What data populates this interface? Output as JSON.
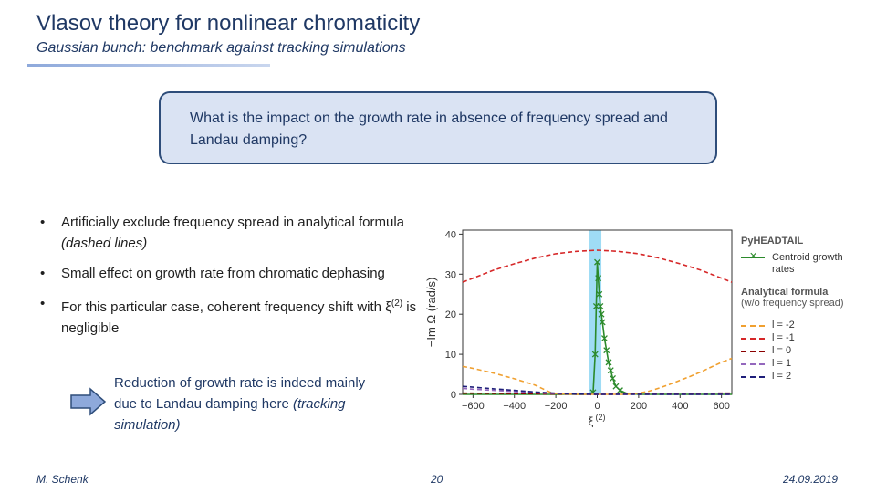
{
  "slide": {
    "title": "Vlasov theory for nonlinear chromaticity",
    "subtitle_bold": "Gaussian bunch:",
    "subtitle_rest": " benchmark against tracking simulations",
    "question": "What is the impact on the growth rate in absence of frequency spread and Landau damping?",
    "bullets": [
      {
        "text": "Artificially exclude frequency spread in analytical formula ",
        "italic": "(dashed lines)"
      },
      {
        "text": "Small effect on growth rate from chromatic dephasing",
        "italic": ""
      },
      {
        "text": "For this particular case, coherent frequency shift with ξ",
        "sup": "(2)",
        "after": " is negligible"
      }
    ],
    "conclusion_main": "Reduction of growth rate is indeed mainly due to Landau damping here",
    "conclusion_italic": "(tracking simulation)",
    "footer_author": "M. Schenk",
    "footer_page": "20",
    "footer_date": "24.09.2019",
    "accent_color": "#1f3864",
    "box_fill": "#dae3f3"
  },
  "chart_data": {
    "type": "line",
    "xlabel": "ξ",
    "xlabel_sup": "(2)",
    "ylabel": "−Im Ω (rad/s)",
    "xlim": [
      -650,
      650
    ],
    "ylim": [
      0,
      41
    ],
    "xticks": [
      -600,
      -400,
      -200,
      0,
      200,
      400,
      600
    ],
    "xtick_labels": [
      "−600",
      "−400",
      "−200",
      "0",
      "200",
      "400",
      "600"
    ],
    "yticks": [
      0,
      10,
      20,
      30,
      40
    ],
    "grid": false,
    "highlight_band": {
      "x_from": -40,
      "x_to": 20,
      "color": "#9fdcf5"
    },
    "legend": {
      "title_tracking": "PyHEADTAIL",
      "tracking_label": "Centroid growth rates",
      "title_analytical": "Analytical formula",
      "analytical_note": "(w/o frequency spread)",
      "placement": "right"
    },
    "series": [
      {
        "name": "Centroid growth rates",
        "color": "#2b8a2b",
        "style": "solid-x",
        "x": [
          -650,
          -550,
          -450,
          -350,
          -250,
          -150,
          -50,
          -20,
          -10,
          -5,
          0,
          5,
          10,
          15,
          20,
          25,
          35,
          45,
          55,
          65,
          75,
          90,
          110,
          140,
          200,
          300,
          400,
          500,
          650
        ],
        "y": [
          0,
          0,
          0,
          0,
          0,
          0,
          0,
          0.5,
          10,
          22,
          33,
          29,
          25,
          22,
          20,
          18,
          14,
          11,
          8,
          6,
          4,
          2,
          1,
          0.3,
          0,
          0,
          0,
          0,
          0
        ]
      },
      {
        "name": "l = -2",
        "color": "#f0a030",
        "style": "dashed",
        "x": [
          -650,
          -600,
          -500,
          -400,
          -300,
          -230,
          -200,
          -150,
          -100,
          -50,
          0,
          50,
          100,
          150,
          200,
          250,
          300,
          350,
          400,
          450,
          500,
          550,
          600,
          650
        ],
        "y": [
          7,
          6.5,
          5.3,
          3.9,
          2.3,
          0.6,
          0.2,
          0.1,
          0,
          0,
          0,
          0,
          0,
          0,
          0.3,
          0.8,
          1.6,
          2.5,
          3.5,
          4.5,
          5.6,
          6.8,
          8,
          9
        ]
      },
      {
        "name": "l = -1",
        "color": "#d62728",
        "style": "dashed",
        "x": [
          -650,
          -600,
          -500,
          -400,
          -300,
          -200,
          -100,
          0,
          100,
          200,
          300,
          400,
          500,
          600,
          650
        ],
        "y": [
          28,
          29,
          31,
          32.6,
          34,
          35.1,
          35.7,
          36,
          35.7,
          35.1,
          34,
          32.6,
          31,
          29,
          28
        ]
      },
      {
        "name": "l = 0",
        "color": "#8b0000",
        "style": "dashed",
        "x": [
          -650,
          -600,
          -500,
          -400,
          -300,
          -200,
          -100,
          0,
          100,
          200,
          300,
          400,
          500,
          600,
          650
        ],
        "y": [
          0.3,
          0.3,
          0.25,
          0.2,
          0.15,
          0.1,
          0.05,
          0,
          0.05,
          0.1,
          0.15,
          0.2,
          0.25,
          0.3,
          0.3
        ]
      },
      {
        "name": "l = 1",
        "color": "#9467bd",
        "style": "dashed",
        "x": [
          -650,
          -600,
          -500,
          -400,
          -300,
          -200,
          -100,
          0,
          100,
          200,
          300,
          400,
          500,
          600,
          650
        ],
        "y": [
          1.5,
          1.3,
          1,
          0.7,
          0.4,
          0.2,
          0.1,
          0,
          0,
          0,
          0,
          0,
          0,
          0,
          0
        ]
      },
      {
        "name": "l = 2",
        "color": "#1f1f7a",
        "style": "dashed",
        "x": [
          -650,
          -600,
          -500,
          -400,
          -300,
          -200,
          -100,
          0,
          100,
          200,
          300,
          400,
          500,
          600,
          650
        ],
        "y": [
          2,
          1.8,
          1.4,
          1,
          0.6,
          0.3,
          0.1,
          0,
          0,
          0,
          0,
          0,
          0,
          0,
          0
        ]
      }
    ]
  }
}
